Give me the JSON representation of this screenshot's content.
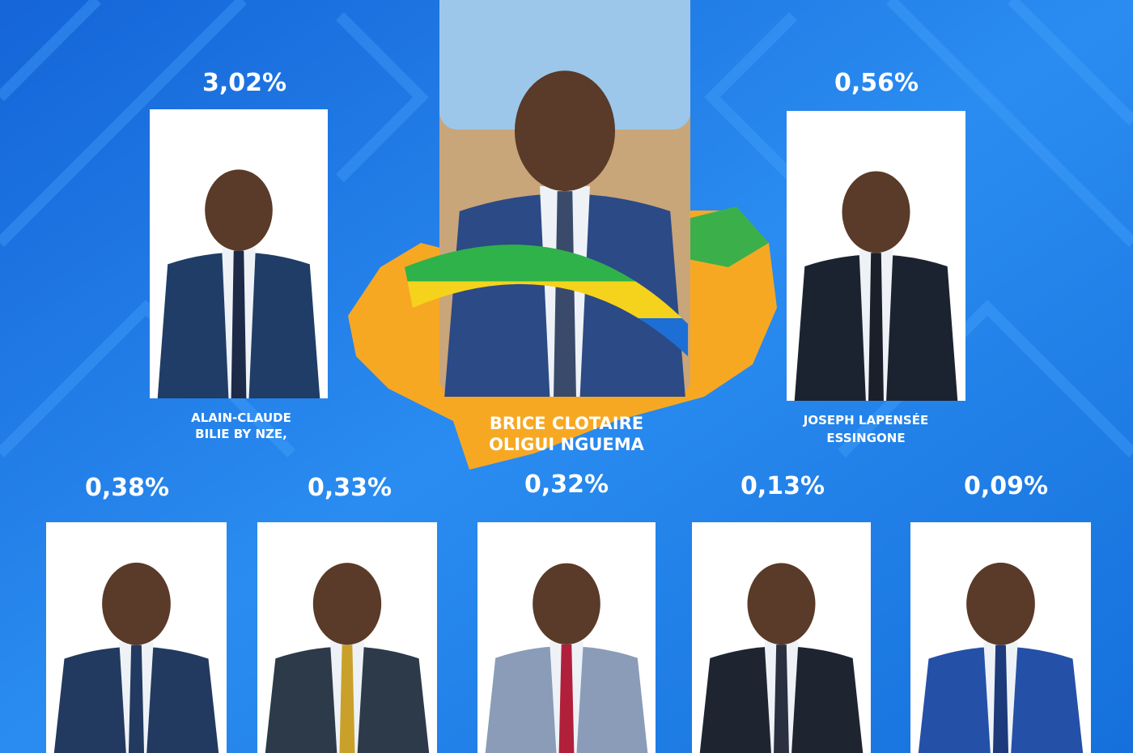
{
  "featured": {
    "name": [
      "BRICE CLOTAIRE",
      "OLIGUI NGUEMA"
    ]
  },
  "top_row": [
    {
      "share": "3,02%",
      "name": [
        "ALAIN-CLAUDE",
        "BILIE BY NZE,"
      ]
    },
    {
      "share": "0,56%",
      "name": [
        "JOSEPH LAPENSÉE",
        "ESSINGONE"
      ]
    }
  ],
  "bottom_row": [
    {
      "share": "0,38%"
    },
    {
      "share": "0,33%"
    },
    {
      "share": "0,32%"
    },
    {
      "share": "0,13%"
    },
    {
      "share": "0,09%"
    }
  ]
}
